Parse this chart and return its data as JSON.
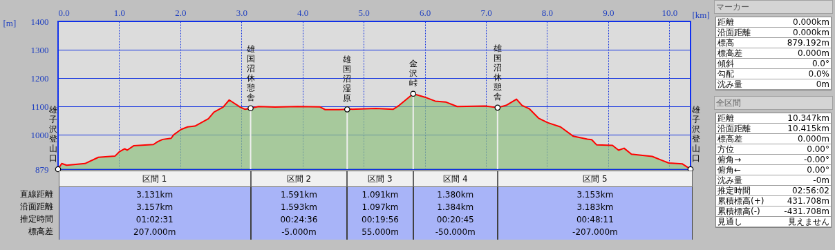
{
  "chart_data": [
    {
      "type": "area",
      "xlabel": "[km]",
      "ylabel": "[m]",
      "xlim": [
        0,
        10.347
      ],
      "ylim": [
        879,
        1400
      ],
      "xticks": [
        {
          "value": 0,
          "label": "0.0"
        },
        {
          "value": 1,
          "label": "1.0"
        },
        {
          "value": 2,
          "label": "2.0"
        },
        {
          "value": 3,
          "label": "3.0"
        },
        {
          "value": 4,
          "label": "4.0"
        },
        {
          "value": 5,
          "label": "5.0"
        },
        {
          "value": 6,
          "label": "6.0"
        },
        {
          "value": 7,
          "label": "7.0"
        },
        {
          "value": 8,
          "label": "8.0"
        },
        {
          "value": 9,
          "label": "9.0"
        },
        {
          "value": 10,
          "label": "10.0"
        }
      ],
      "yticks": [
        879,
        1000,
        1100,
        1200,
        1300,
        1400
      ],
      "grid": true,
      "series": [
        {
          "color": "#90c080",
          "x": [
            0,
            0.06,
            0.14,
            0.44,
            0.66,
            0.93,
            1.0,
            1.09,
            1.13,
            1.24,
            1.56,
            1.63,
            1.71,
            1.85,
            1.89,
            2.01,
            2.12,
            2.24,
            2.46,
            2.55,
            2.7,
            2.8,
            2.98,
            3.06,
            3.15,
            3.28,
            3.55,
            3.92,
            4.28,
            4.37,
            4.6,
            4.73,
            5.2,
            5.48,
            5.58,
            5.81,
            6.0,
            6.17,
            6.34,
            6.53,
            6.99,
            7.19,
            7.33,
            7.5,
            7.59,
            7.71,
            7.86,
            8.01,
            8.22,
            8.43,
            8.66,
            8.73,
            8.81,
            9.07,
            9.17,
            9.26,
            9.38,
            9.72,
            9.87,
            9.99,
            10.21,
            10.347
          ],
          "values": [
            879,
            899,
            893,
            899,
            921,
            925,
            940,
            951,
            946,
            962,
            966,
            976,
            984,
            988,
            1000,
            1019,
            1028,
            1031,
            1057,
            1080,
            1098,
            1123,
            1098,
            1090,
            1094,
            1100,
            1098,
            1100,
            1099,
            1089,
            1089,
            1090,
            1093,
            1090,
            1104,
            1145,
            1133,
            1119,
            1116,
            1100,
            1102,
            1096,
            1104,
            1126,
            1104,
            1092,
            1059,
            1043,
            1028,
            995,
            985,
            983,
            965,
            963,
            946,
            953,
            932,
            924,
            911,
            901,
            898,
            879
          ]
        }
      ],
      "ref_lines": [
        {
          "axis": "x",
          "value": 3.15,
          "label": "雄国沼休憩舎"
        },
        {
          "axis": "x",
          "value": 4.73,
          "label": "雄国沼湿原"
        },
        {
          "axis": "x",
          "value": 5.81,
          "label": "金沢峠"
        },
        {
          "axis": "x",
          "value": 7.19,
          "label": "雄国沼休憩舎"
        }
      ],
      "annotations": [
        {
          "text": "雄子沢登山口",
          "x": 0,
          "y": 879
        },
        {
          "text": "雄子沢登山口",
          "x": 10.347,
          "y": 879
        },
        "直線距離",
        "沿面距離",
        "推定時間",
        "標高差",
        "区間 1",
        "区間 2",
        "区間 3",
        "区間 4",
        "区間 5",
        "3.131km",
        "1.591km",
        "1.091km",
        "1.380km",
        "3.153km",
        "3.157km",
        "1.593km",
        "1.097km",
        "1.384km",
        "3.183km",
        "01:02:31",
        "00:24:36",
        "00:19:56",
        "00:20:45",
        "00:48:11",
        "207.000m",
        "-5.000m",
        "55.000m",
        "-50.000m",
        "-207.000m"
      ]
    },
    {
      "type": "other",
      "title": "マーカー",
      "annotations": [
        "距離",
        "0.000km",
        "沿面距離",
        "0.000km",
        "標高",
        "879.192m",
        "標高差",
        "0.000m",
        "傾斜",
        "0.0°",
        "勾配",
        "0.0%",
        "沈み量",
        "0m"
      ]
    },
    {
      "type": "other",
      "title": "全区間",
      "annotations": [
        "距離",
        "10.347km",
        "沿面距離",
        "10.415km",
        "標高差",
        "0.000m",
        "方位",
        "0.00°",
        "俯角→",
        "-0.00°",
        "俯角←",
        "0.00°",
        "沈み量",
        "-0m",
        "推定時間",
        "02:56:02",
        "累積標高(+)",
        "431.708m",
        "累積標高(-)",
        "-431.708m",
        "見通し",
        "見えません"
      ]
    }
  ]
}
